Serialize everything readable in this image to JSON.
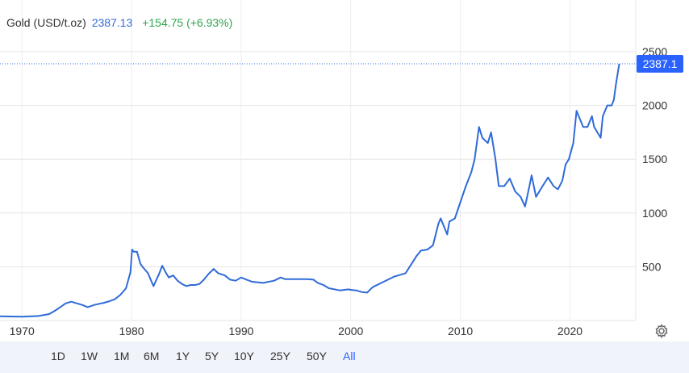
{
  "header": {
    "instrument": "Gold (USD/t.oz)",
    "price": "2387.13",
    "change": "+154.75 (+6.93%)"
  },
  "last_price_label": "2387.1",
  "colors": {
    "line": "#2f6bd8",
    "badge": "#2962ff",
    "change": "#2ea44f",
    "grid": "#e6e6e6",
    "range_bar": "#f0f3fa"
  },
  "icons": {
    "settings": "gear-icon"
  },
  "range_buttons": [
    {
      "label": "1D",
      "active": false
    },
    {
      "label": "1W",
      "active": false
    },
    {
      "label": "1M",
      "active": false
    },
    {
      "label": "6M",
      "active": false
    },
    {
      "label": "1Y",
      "active": false
    },
    {
      "label": "5Y",
      "active": false
    },
    {
      "label": "10Y",
      "active": false
    },
    {
      "label": "25Y",
      "active": false
    },
    {
      "label": "50Y",
      "active": false
    },
    {
      "label": "All",
      "active": true
    }
  ],
  "chart_data": {
    "type": "line",
    "title": "",
    "xlabel": "",
    "ylabel": "",
    "xlim": [
      1968,
      2026
    ],
    "ylim": [
      0,
      2500
    ],
    "x_ticks": [
      1970,
      1980,
      1990,
      2000,
      2010,
      2020
    ],
    "y_ticks": [
      500,
      1000,
      1500,
      2000,
      2500
    ],
    "grid": true,
    "legend": "none",
    "last_value_line": 2387.1,
    "series": [
      {
        "x": [
          1968.0,
          1970.0,
          1971.5,
          1972.5,
          1973.0,
          1973.5,
          1974.0,
          1974.5,
          1975.0,
          1975.5,
          1976.0,
          1976.7,
          1977.5,
          1978.0,
          1978.5,
          1979.0,
          1979.5,
          1979.9,
          1980.05,
          1980.2,
          1980.5,
          1980.8,
          1981.0,
          1981.5,
          1982.0,
          1982.5,
          1982.8,
          1983.1,
          1983.4,
          1983.8,
          1984.2,
          1984.6,
          1985.0,
          1985.4,
          1985.8,
          1986.2,
          1986.6,
          1987.0,
          1987.5,
          1987.9,
          1988.5,
          1989.0,
          1989.5,
          1990.0,
          1990.5,
          1991.0,
          1992.0,
          1993.0,
          1993.6,
          1994.0,
          1995.0,
          1996.0,
          1996.6,
          1997.0,
          1997.5,
          1998.0,
          1999.0,
          1999.8,
          2000.0,
          2000.5,
          2001.0,
          2001.5,
          2002.0,
          2003.0,
          2004.0,
          2005.0,
          2006.0,
          2006.4,
          2007.0,
          2007.5,
          2008.0,
          2008.2,
          2008.8,
          2009.0,
          2009.5,
          2010.0,
          2010.5,
          2011.0,
          2011.3,
          2011.7,
          2012.0,
          2012.5,
          2012.8,
          2013.2,
          2013.5,
          2014.0,
          2014.5,
          2015.0,
          2015.5,
          2015.9,
          2016.3,
          2016.5,
          2016.9,
          2017.5,
          2018.0,
          2018.5,
          2018.9,
          2019.3,
          2019.6,
          2019.9,
          2020.3,
          2020.6,
          2021.0,
          2021.2,
          2021.6,
          2022.0,
          2022.2,
          2022.8,
          2023.0,
          2023.4,
          2023.8,
          2024.0,
          2024.2,
          2024.4,
          2024.5
        ],
        "y": [
          40,
          36,
          42,
          60,
          90,
          125,
          160,
          175,
          160,
          145,
          125,
          148,
          165,
          180,
          200,
          240,
          300,
          450,
          660,
          640,
          640,
          530,
          500,
          440,
          320,
          430,
          510,
          450,
          400,
          420,
          370,
          340,
          320,
          330,
          330,
          340,
          380,
          430,
          480,
          440,
          420,
          380,
          370,
          400,
          380,
          360,
          350,
          370,
          400,
          385,
          385,
          385,
          380,
          350,
          330,
          300,
          280,
          290,
          285,
          280,
          265,
          260,
          310,
          360,
          410,
          440,
          600,
          650,
          660,
          700,
          900,
          950,
          800,
          920,
          950,
          1100,
          1250,
          1380,
          1500,
          1800,
          1700,
          1650,
          1750,
          1500,
          1250,
          1250,
          1320,
          1200,
          1150,
          1060,
          1250,
          1350,
          1150,
          1250,
          1330,
          1250,
          1220,
          1300,
          1450,
          1500,
          1650,
          1950,
          1850,
          1800,
          1800,
          1900,
          1800,
          1700,
          1900,
          2000,
          2000,
          2050,
          2200,
          2330,
          2387.1
        ]
      }
    ]
  }
}
